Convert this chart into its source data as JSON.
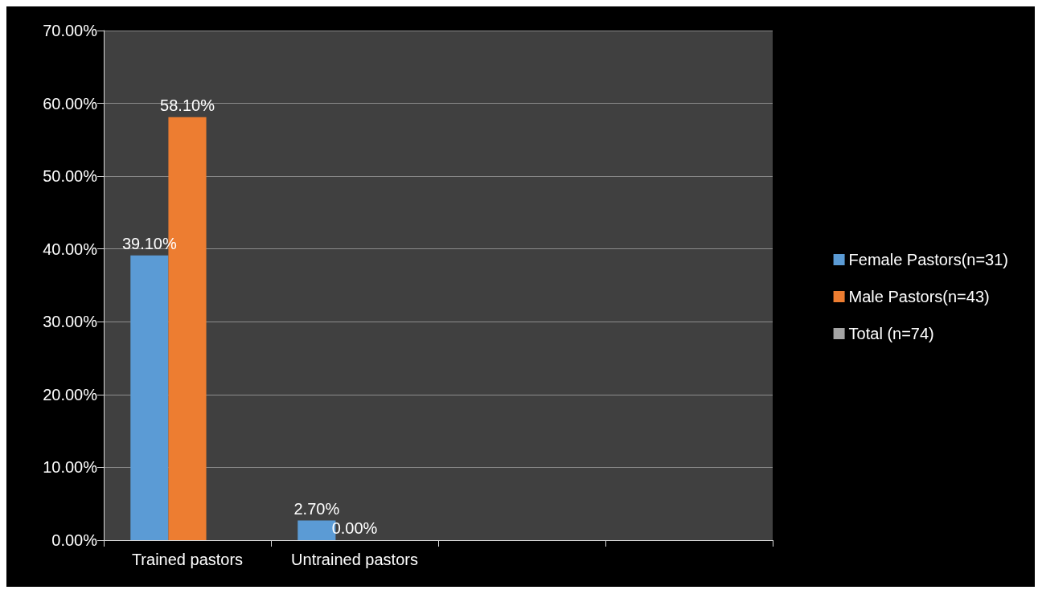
{
  "chart_data": {
    "type": "bar",
    "categories": [
      "Trained pastors",
      "Untrained pastors",
      null,
      null
    ],
    "series": [
      {
        "name": "Female Pastors(n=31)",
        "color": "#5b9bd5",
        "values": [
          39.1,
          2.7,
          null,
          null
        ],
        "value_labels": [
          "39.10%",
          "2.70%",
          null,
          null
        ]
      },
      {
        "name": "Male Pastors(n=43)",
        "color": "#ed7d31",
        "values": [
          58.1,
          0,
          null,
          null
        ],
        "value_labels": [
          "58.10%",
          "0.00%",
          null,
          null
        ]
      },
      {
        "name": "Total (n=74)",
        "color": "#a5a5a5",
        "values": [
          null,
          null,
          null,
          null
        ]
      }
    ],
    "ylim": [
      0,
      70
    ],
    "yticks": [
      {
        "value": 0,
        "label": "0.00%"
      },
      {
        "value": 10,
        "label": "10.00%"
      },
      {
        "value": 20,
        "label": "20.00%"
      },
      {
        "value": 30,
        "label": "30.00%"
      },
      {
        "value": 40,
        "label": "40.00%"
      },
      {
        "value": 50,
        "label": "50.00%"
      },
      {
        "value": 60,
        "label": "60.00%"
      },
      {
        "value": 70,
        "label": "70.00%"
      }
    ],
    "grid": "y",
    "legend": "right"
  }
}
